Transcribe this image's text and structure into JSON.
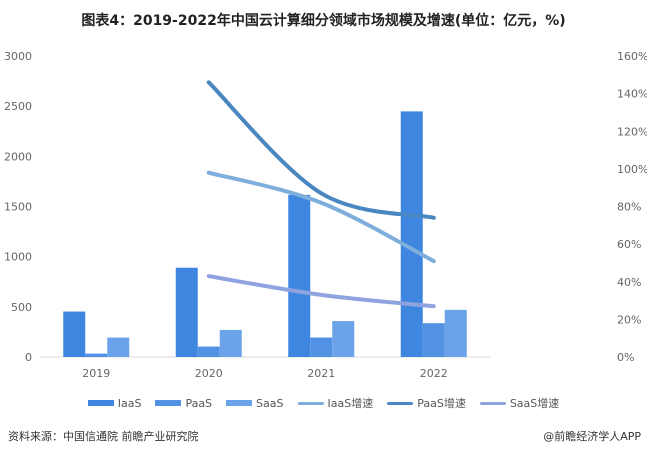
{
  "title": "图表4：2019-2022年中国云计算细分领域市场规模及增速(单位：亿元，%)",
  "source": "资料来源：中国信通院 前瞻产业研究院",
  "credit": "@前瞻经济学人APP",
  "chart_data": {
    "type": "bar",
    "categories": [
      "2019",
      "2020",
      "2021",
      "2022"
    ],
    "y_left": {
      "ylim": [
        0,
        3000
      ],
      "ticks": [
        "0",
        "500",
        "1000",
        "1500",
        "2000",
        "2500",
        "3000"
      ]
    },
    "y_right": {
      "ylim": [
        0,
        160
      ],
      "ticks": [
        "0%",
        "20%",
        "40%",
        "60%",
        "80%",
        "100%",
        "120%",
        "140%",
        "160%"
      ]
    },
    "series": [
      {
        "name": "IaaS",
        "type": "bar",
        "color": "#3f86e0",
        "values": [
          453,
          890,
          1616,
          2448
        ]
      },
      {
        "name": "PaaS",
        "type": "bar",
        "color": "#5192e4",
        "values": [
          34,
          104,
          194,
          337
        ]
      },
      {
        "name": "SaaS",
        "type": "bar",
        "color": "#6aa3ea",
        "values": [
          194,
          270,
          358,
          470
        ]
      },
      {
        "name": "IaaS增速",
        "type": "line",
        "axis": "right",
        "color": "#7eaedc",
        "values": [
          null,
          98,
          82,
          51
        ]
      },
      {
        "name": "PaaS增速",
        "type": "line",
        "axis": "right",
        "color": "#4a86bf",
        "values": [
          null,
          146,
          87,
          74
        ]
      },
      {
        "name": "SaaS增速",
        "type": "line",
        "axis": "right",
        "color": "#8fa3e0",
        "values": [
          null,
          43,
          33,
          27
        ]
      }
    ],
    "legend": "bottom",
    "grid": false
  }
}
